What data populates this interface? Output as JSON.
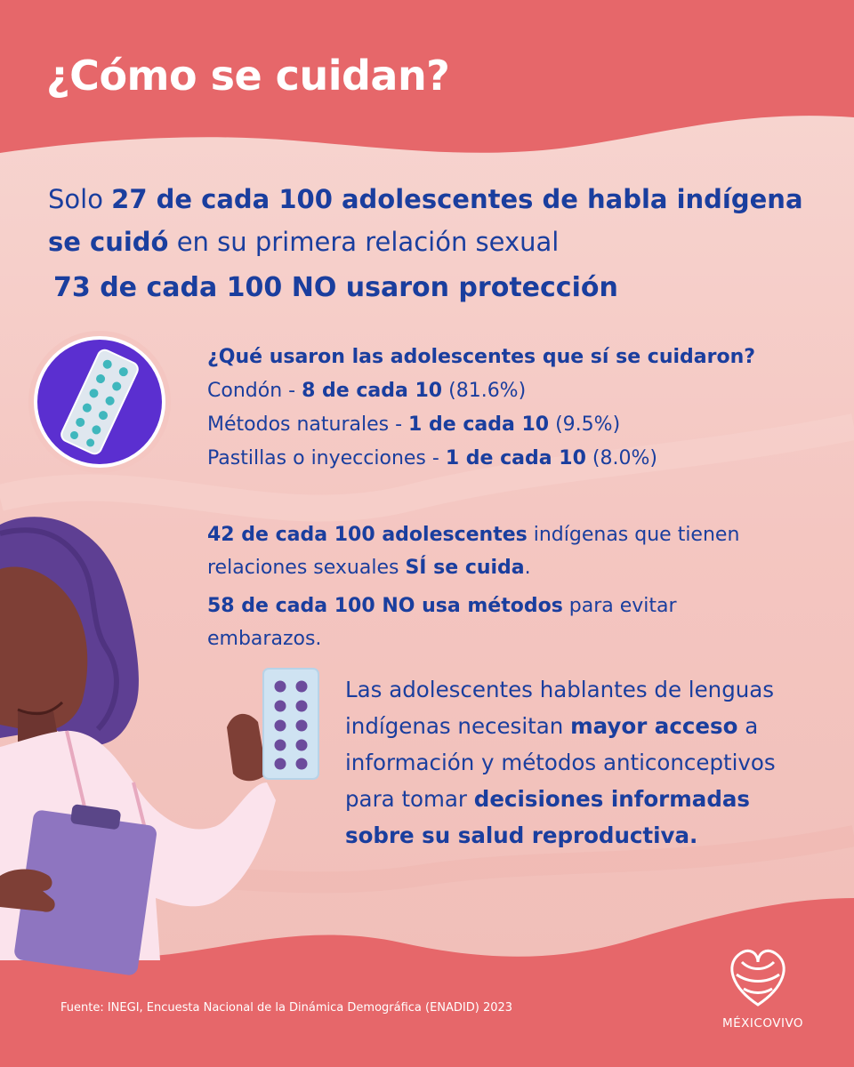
{
  "title": "¿Cómo se cuidan?",
  "lead": {
    "pre": "Solo ",
    "bold1": "27 de cada 100 adolescentes de habla indígena",
    "mid": " ",
    "bold2": "se cuidó",
    "post": " en su primera relación sexual"
  },
  "headline": "73 de cada 100 NO usaron protección",
  "methods": {
    "question": "¿Qué usaron las adolescentes que sí se cuidaron?",
    "items": [
      {
        "label": "Condón - ",
        "value": "8 de cada 10",
        "percent": " (81.6%)"
      },
      {
        "label": "Métodos naturales - ",
        "value": "1 de cada 10",
        "percent": " (9.5%)"
      },
      {
        "label": "Pastillas o inyecciones - ",
        "value": "1 de cada 10",
        "percent": " (8.0%)"
      }
    ]
  },
  "care": {
    "bold1": "42 de cada 100 adolescentes",
    "text1": " indígenas que tienen relaciones sexuales ",
    "bold2": "SÍ se cuida",
    "text2": ".",
    "bold3": "58 de cada 100 NO usa métodos",
    "text3": " para evitar embarazos."
  },
  "closing": {
    "text1": "Las adolescentes hablantes de lenguas indígenas necesitan ",
    "bold1": "mayor acceso",
    "text2": " a información y métodos anticonceptivos para tomar ",
    "bold2": "decisiones informadas sobre su salud reproductiva."
  },
  "source": "Fuente: INEGI, Encuesta Nacional de la Dinámica Demográfica (ENADID) 2023",
  "logo": "MÉXICOVIVO",
  "colors": {
    "coral": "#e6676a",
    "pink": "#f3c4c0",
    "blue": "#1a3e9e",
    "purple": "#5b2fd0"
  }
}
